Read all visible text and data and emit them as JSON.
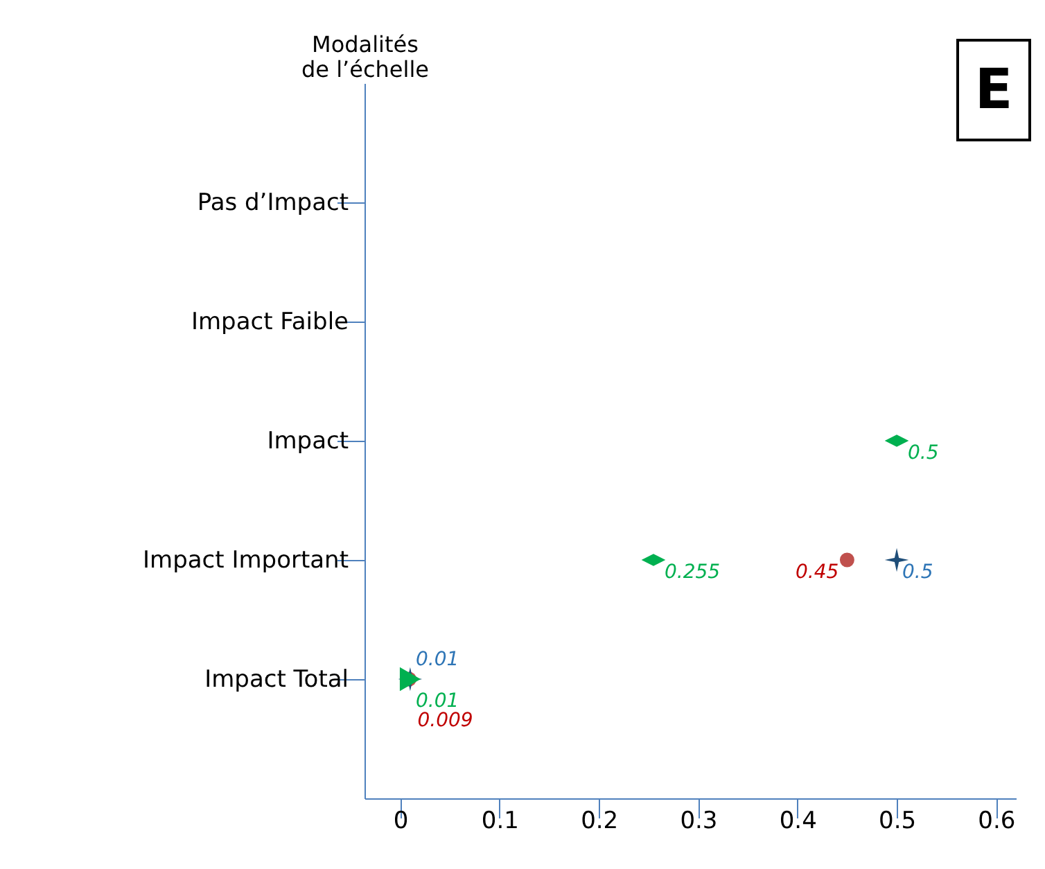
{
  "chart_data": {
    "type": "scatter",
    "orientation": "horizontal",
    "ylabel": "Modalités de l’échelle",
    "annotations": [
      "E"
    ],
    "categories": [
      "Pas d’Impact",
      "Impact Faible",
      "Impact",
      "Impact Important",
      "Impact Total"
    ],
    "xlim": [
      -0.036,
      0.62
    ],
    "xticks": [
      0,
      0.1,
      0.2,
      0.3,
      0.4,
      0.5,
      0.6
    ],
    "grid": false,
    "data_labels": true,
    "series": [
      {
        "color": "#00b050",
        "marker": "diamond",
        "values": [
          null,
          null,
          0.5,
          0.255,
          null
        ]
      },
      {
        "color": "#c0504d",
        "marker": "circle",
        "values": [
          null,
          null,
          null,
          0.45,
          0.009
        ]
      },
      {
        "color": "#1f4e79",
        "marker": "star",
        "values": [
          null,
          null,
          null,
          0.5,
          0.01
        ]
      },
      {
        "color": "#00b050",
        "marker": "triangle",
        "values": [
          null,
          null,
          null,
          null,
          0.01
        ]
      }
    ]
  }
}
